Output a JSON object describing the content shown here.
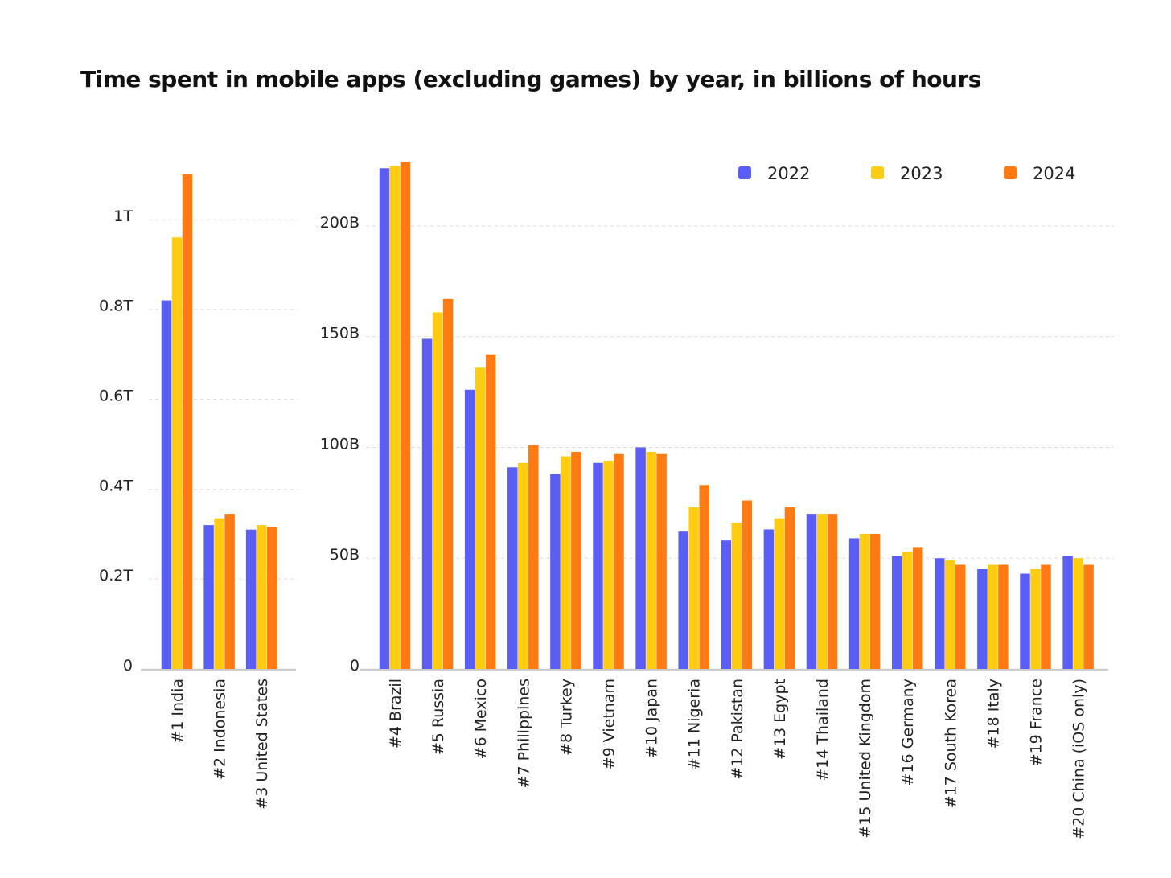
{
  "title": "Time spent in mobile apps (excluding games) by year, in billions  of hours",
  "colors": {
    "2022": "#5A5EF5",
    "2023": "#FFCC12",
    "2024": "#FF7A12",
    "grid": "#dddddd",
    "axis": "#cccccc"
  },
  "chart_data": [
    {
      "type": "bar",
      "categories": [
        "#1 India",
        "#2 Indonesia",
        "#3 United States"
      ],
      "series": [
        {
          "name": "2022",
          "values": [
            0.82,
            0.32,
            0.31
          ]
        },
        {
          "name": "2023",
          "values": [
            0.96,
            0.335,
            0.32
          ]
        },
        {
          "name": "2024",
          "values": [
            1.1,
            0.345,
            0.315
          ]
        }
      ],
      "unit": "T",
      "ylim": [
        0,
        1.1
      ],
      "yticks": [
        {
          "value": 0,
          "label": "0"
        },
        {
          "value": 0.2,
          "label": "0.2T"
        },
        {
          "value": 0.4,
          "label": "0.4T"
        },
        {
          "value": 0.6,
          "label": "0.6T"
        },
        {
          "value": 0.8,
          "label": "0.8T"
        },
        {
          "value": 1.0,
          "label": "1T"
        }
      ],
      "grid": true,
      "title": "",
      "xlabel": "",
      "ylabel": ""
    },
    {
      "type": "bar",
      "categories": [
        "#4 Brazil",
        "#5 Russia",
        "#6 Mexico",
        "#7 Philippines",
        "#8 Turkey",
        "#9 Vietnam",
        "#10 Japan",
        "#11 Nigeria",
        "#12 Pakistan",
        "#13 Egypt",
        "#14 Thailand",
        "#15 United Kingdom",
        "#16 Germany",
        "#17 South Korea",
        "#18 Italy",
        "#19 France",
        "#20 China (iOS only)"
      ],
      "series": [
        {
          "name": "2022",
          "values": [
            226,
            149,
            126,
            91,
            88,
            93,
            100,
            62,
            58,
            63,
            70,
            59,
            51,
            50,
            45,
            43,
            51
          ]
        },
        {
          "name": "2023",
          "values": [
            227,
            161,
            136,
            93,
            96,
            94,
            98,
            73,
            66,
            68,
            70,
            61,
            53,
            49,
            47,
            45,
            50
          ]
        },
        {
          "name": "2024",
          "values": [
            229,
            167,
            142,
            101,
            98,
            97,
            97,
            83,
            76,
            73,
            70,
            61,
            55,
            47,
            47,
            47,
            47
          ]
        }
      ],
      "unit": "B",
      "ylim": [
        0,
        229
      ],
      "yticks": [
        {
          "value": 0,
          "label": "0"
        },
        {
          "value": 50,
          "label": "50B"
        },
        {
          "value": 100,
          "label": "100B"
        },
        {
          "value": 150,
          "label": "150B"
        },
        {
          "value": 200,
          "label": "200B"
        }
      ],
      "grid": true,
      "legend": [
        "2022",
        "2023",
        "2024"
      ],
      "legend_position": "top-right",
      "title": "",
      "xlabel": "",
      "ylabel": ""
    }
  ]
}
